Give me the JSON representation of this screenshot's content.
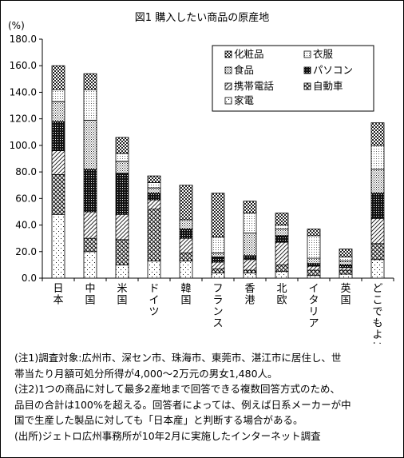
{
  "chart_data": {
    "type": "bar",
    "stacked": true,
    "title": "図1 購入したい商品の原産地",
    "ylabel": "(%)",
    "ylim": [
      0,
      180
    ],
    "yticks": [
      "0.0",
      "20.0",
      "40.0",
      "60.0",
      "80.0",
      "100.0",
      "120.0",
      "140.0",
      "160.0",
      "180.0"
    ],
    "categories": [
      "日本",
      "中国",
      "米国",
      "ドイツ",
      "韓国",
      "フランス",
      "香港",
      "北欧",
      "イタリア",
      "英国",
      "どこでもよい"
    ],
    "legend_position": "top-right",
    "series": [
      {
        "name": "家電",
        "pattern": "dots-sparse",
        "values": [
          48,
          20,
          10,
          13,
          13,
          4,
          4,
          5,
          2,
          3,
          14
        ]
      },
      {
        "name": "自動車",
        "pattern": "cross",
        "values": [
          30,
          10,
          19,
          39,
          6,
          3,
          2,
          5,
          4,
          3,
          12
        ]
      },
      {
        "name": "携帯電話",
        "pattern": "hatch",
        "values": [
          18,
          20,
          19,
          7,
          11,
          5,
          8,
          17,
          3,
          2,
          19
        ]
      },
      {
        "name": "パソコン",
        "pattern": "dense",
        "values": [
          22,
          32,
          31,
          5,
          7,
          4,
          3,
          5,
          2,
          2,
          19
        ]
      },
      {
        "name": "食品",
        "pattern": "dots-fine",
        "values": [
          15,
          37,
          9,
          4,
          7,
          3,
          17,
          5,
          4,
          3,
          18
        ]
      },
      {
        "name": "衣服",
        "pattern": "dots-fine2",
        "values": [
          9,
          23,
          6,
          4,
          0,
          12,
          15,
          3,
          17,
          3,
          18
        ]
      },
      {
        "name": "化粧品",
        "pattern": "checker",
        "values": [
          18,
          12,
          12,
          5,
          26,
          33,
          9,
          9,
          5,
          6,
          17
        ]
      }
    ]
  },
  "legend_order": [
    "化粧品",
    "衣服",
    "食品",
    "パソコン",
    "携帯電話",
    "自動車",
    "家電"
  ],
  "notes": [
    "(注1)調査対象:広州市、深セン市、珠海市、東莞市、湛江市に居住し、世",
    "帯当たり月額可処分所得が4,000〜2万元の男女1,480人。",
    "(注2)1つの商品に対して最多2産地まで回答できる複数回答方式のため、",
    "品目の合計は100%を超える。回答者によっては、例えば日系メーカーが中",
    "国で生産した製品に対しても「日本産」と判断する場合がある。",
    "(出所)ジェトロ広州事務所が10年2月に実施したインターネット調査"
  ]
}
